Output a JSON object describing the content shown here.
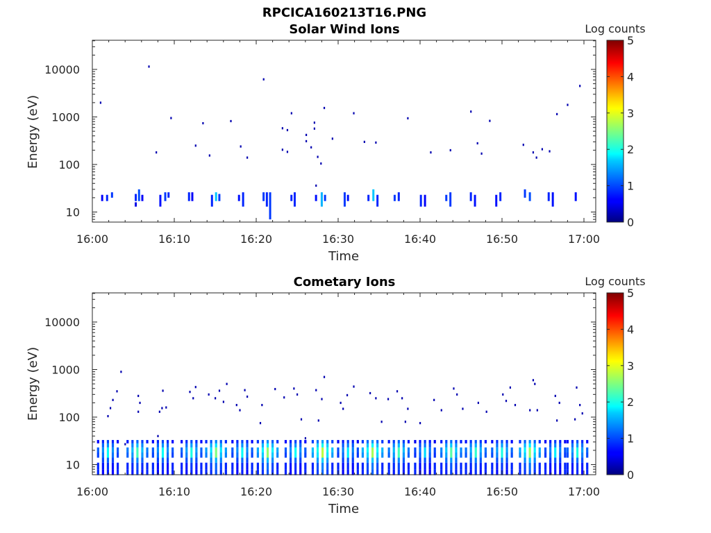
{
  "figure_title": "RPCICA160213T16.PNG",
  "chart_data": [
    {
      "type": "heatmap",
      "title": "Solar Wind Ions",
      "xlabel": "Time",
      "ylabel": "Energy (eV)",
      "x_ticks": [
        "16:00",
        "16:10",
        "16:20",
        "16:30",
        "16:40",
        "16:50",
        "17:00"
      ],
      "y_ticks": [
        "10",
        "100",
        "1000",
        "10000"
      ],
      "xlim": [
        "16:00",
        "17:00"
      ],
      "ylim": [
        6,
        40000
      ],
      "y_scale": "log",
      "colorbar": {
        "label": "Log counts",
        "ticks": [
          "0",
          "1",
          "2",
          "3",
          "4",
          "5"
        ],
        "range": [
          0,
          5
        ],
        "colormap": "jet"
      },
      "columns": [
        {
          "t": 1.2,
          "e": [
            [
              17,
              23,
              0.6
            ]
          ]
        },
        {
          "t": 1.8,
          "e": [
            [
              17,
              23,
              0.8
            ]
          ]
        },
        {
          "t": 2.4,
          "e": [
            [
              20,
              26,
              0.9
            ]
          ]
        },
        {
          "t": 5.3,
          "e": [
            [
              17,
              24,
              0.8
            ],
            [
              13,
              16,
              0.5
            ]
          ]
        },
        {
          "t": 5.7,
          "e": [
            [
              17,
              30,
              1.0
            ]
          ]
        },
        {
          "t": 6.1,
          "e": [
            [
              17,
              23,
              0.6
            ]
          ]
        },
        {
          "t": 8.3,
          "e": [
            [
              13,
              23,
              0.7
            ]
          ]
        },
        {
          "t": 8.9,
          "e": [
            [
              17,
              26,
              0.9
            ]
          ]
        },
        {
          "t": 9.3,
          "e": [
            [
              20,
              26,
              0.8
            ]
          ]
        },
        {
          "t": 11.8,
          "e": [
            [
              17,
              26,
              0.8
            ]
          ]
        },
        {
          "t": 12.2,
          "e": [
            [
              17,
              26,
              0.6
            ]
          ]
        },
        {
          "t": 14.6,
          "e": [
            [
              13,
              23,
              0.8
            ]
          ]
        },
        {
          "t": 15.1,
          "e": [
            [
              17,
              26,
              1.6
            ]
          ]
        },
        {
          "t": 15.5,
          "e": [
            [
              17,
              24,
              0.9
            ]
          ]
        },
        {
          "t": 17.9,
          "e": [
            [
              17,
              23,
              0.7
            ]
          ]
        },
        {
          "t": 18.4,
          "e": [
            [
              13,
              26,
              0.8
            ]
          ]
        },
        {
          "t": 20.9,
          "e": [
            [
              17,
              26,
              0.9
            ]
          ]
        },
        {
          "t": 21.3,
          "e": [
            [
              13,
              26,
              0.8
            ]
          ]
        },
        {
          "t": 21.7,
          "e": [
            [
              7,
              26,
              0.9
            ]
          ]
        },
        {
          "t": 24.3,
          "e": [
            [
              17,
              23,
              0.8
            ]
          ]
        },
        {
          "t": 24.7,
          "e": [
            [
              13,
              26,
              0.8
            ]
          ]
        },
        {
          "t": 27.3,
          "e": [
            [
              17,
              23,
              0.7
            ]
          ]
        },
        {
          "t": 28.0,
          "e": [
            [
              13,
              26,
              1.5
            ]
          ]
        },
        {
          "t": 28.4,
          "e": [
            [
              17,
              23,
              0.9
            ]
          ]
        },
        {
          "t": 30.8,
          "e": [
            [
              13,
              26,
              0.9
            ]
          ]
        },
        {
          "t": 31.2,
          "e": [
            [
              17,
              23,
              0.7
            ]
          ]
        },
        {
          "t": 33.7,
          "e": [
            [
              17,
              23,
              0.8
            ]
          ]
        },
        {
          "t": 34.3,
          "e": [
            [
              17,
              30,
              1.6
            ]
          ]
        },
        {
          "t": 34.8,
          "e": [
            [
              13,
              23,
              0.8
            ]
          ]
        },
        {
          "t": 36.9,
          "e": [
            [
              17,
              23,
              0.9
            ]
          ]
        },
        {
          "t": 37.4,
          "e": [
            [
              17,
              26,
              0.8
            ]
          ]
        },
        {
          "t": 40.1,
          "e": [
            [
              13,
              23,
              0.8
            ]
          ]
        },
        {
          "t": 40.6,
          "e": [
            [
              13,
              23,
              0.6
            ]
          ]
        },
        {
          "t": 43.2,
          "e": [
            [
              17,
              23,
              0.9
            ]
          ]
        },
        {
          "t": 43.7,
          "e": [
            [
              13,
              26,
              0.9
            ]
          ]
        },
        {
          "t": 46.2,
          "e": [
            [
              17,
              26,
              0.8
            ]
          ]
        },
        {
          "t": 46.7,
          "e": [
            [
              13,
              23,
              0.7
            ]
          ]
        },
        {
          "t": 49.3,
          "e": [
            [
              13,
              23,
              0.7
            ]
          ]
        },
        {
          "t": 49.8,
          "e": [
            [
              17,
              26,
              0.8
            ]
          ]
        },
        {
          "t": 52.8,
          "e": [
            [
              20,
              30,
              0.9
            ]
          ]
        },
        {
          "t": 53.4,
          "e": [
            [
              17,
              26,
              1.0
            ]
          ]
        },
        {
          "t": 55.7,
          "e": [
            [
              17,
              26,
              0.8
            ]
          ]
        },
        {
          "t": 56.2,
          "e": [
            [
              13,
              26,
              0.7
            ]
          ]
        },
        {
          "t": 59.0,
          "e": [
            [
              17,
              26,
              0.7
            ]
          ]
        }
      ],
      "pixels": [
        [
          1.0,
          2000
        ],
        [
          6.9,
          11500
        ],
        [
          7.8,
          180
        ],
        [
          9.6,
          950
        ],
        [
          12.6,
          250
        ],
        [
          13.5,
          740
        ],
        [
          14.3,
          155
        ],
        [
          16.9,
          820
        ],
        [
          18.1,
          240
        ],
        [
          18.9,
          140
        ],
        [
          20.9,
          6200
        ],
        [
          23.2,
          580
        ],
        [
          23.2,
          205
        ],
        [
          23.8,
          530
        ],
        [
          23.8,
          185
        ],
        [
          24.3,
          1200
        ],
        [
          26.1,
          420
        ],
        [
          26.1,
          310
        ],
        [
          26.7,
          230
        ],
        [
          27.1,
          760
        ],
        [
          27.1,
          570
        ],
        [
          27.5,
          145
        ],
        [
          27.9,
          105
        ],
        [
          28.3,
          1550
        ],
        [
          29.3,
          350
        ],
        [
          31.9,
          1200
        ],
        [
          33.2,
          300
        ],
        [
          34.6,
          290
        ],
        [
          38.5,
          940
        ],
        [
          41.3,
          180
        ],
        [
          43.7,
          200
        ],
        [
          46.2,
          1300
        ],
        [
          47.0,
          280
        ],
        [
          47.5,
          170
        ],
        [
          48.5,
          830
        ],
        [
          52.6,
          260
        ],
        [
          53.8,
          180
        ],
        [
          54.2,
          140
        ],
        [
          54.9,
          210
        ],
        [
          55.8,
          190
        ],
        [
          56.7,
          1150
        ],
        [
          58.0,
          1800
        ],
        [
          59.5,
          4500
        ],
        [
          28.3,
          6
        ],
        [
          27.3,
          36
        ]
      ]
    },
    {
      "type": "heatmap",
      "title": "Cometary Ions",
      "xlabel": "Time",
      "ylabel": "Energy (eV)",
      "x_ticks": [
        "16:00",
        "16:10",
        "16:20",
        "16:30",
        "16:40",
        "16:50",
        "17:00"
      ],
      "y_ticks": [
        "10",
        "100",
        "1000",
        "10000"
      ],
      "xlim": [
        "16:00",
        "17:00"
      ],
      "ylim": [
        6,
        40000
      ],
      "y_scale": "log",
      "colorbar": {
        "label": "Log counts",
        "ticks": [
          "0",
          "1",
          "2",
          "3",
          "4",
          "5"
        ],
        "range": [
          0,
          5
        ],
        "colormap": "jet"
      },
      "column_groups": [
        {
          "t": 1.9,
          "peak": 1.9
        },
        {
          "t": 5.5,
          "peak": 2.2
        },
        {
          "t": 8.6,
          "peak": 1.9
        },
        {
          "t": 12.1,
          "peak": 2.0
        },
        {
          "t": 15.1,
          "peak": 2.5
        },
        {
          "t": 18.3,
          "peak": 1.9
        },
        {
          "t": 21.4,
          "peak": 2.6
        },
        {
          "t": 24.8,
          "peak": 1.9
        },
        {
          "t": 28.1,
          "peak": 2.8
        },
        {
          "t": 31.2,
          "peak": 1.8
        },
        {
          "t": 34.2,
          "peak": 2.7
        },
        {
          "t": 37.4,
          "peak": 2.2
        },
        {
          "t": 40.6,
          "peak": 1.7
        },
        {
          "t": 43.8,
          "peak": 2.3
        },
        {
          "t": 46.8,
          "peak": 2.1
        },
        {
          "t": 50.0,
          "peak": 2.0
        },
        {
          "t": 53.4,
          "peak": 2.6
        },
        {
          "t": 56.5,
          "peak": 1.8
        },
        {
          "t": 59.2,
          "peak": 2.0
        }
      ],
      "pixels": [
        [
          3.5,
          900
        ],
        [
          3.0,
          350
        ],
        [
          2.5,
          230
        ],
        [
          2.2,
          155
        ],
        [
          1.9,
          105
        ],
        [
          5.6,
          280
        ],
        [
          5.8,
          200
        ],
        [
          5.6,
          130
        ],
        [
          8.6,
          360
        ],
        [
          8.5,
          155
        ],
        [
          8.2,
          130
        ],
        [
          9.0,
          160
        ],
        [
          11.9,
          340
        ],
        [
          12.3,
          250
        ],
        [
          12.6,
          430
        ],
        [
          14.2,
          300
        ],
        [
          15.0,
          250
        ],
        [
          15.5,
          360
        ],
        [
          16.0,
          210
        ],
        [
          16.4,
          500
        ],
        [
          17.6,
          180
        ],
        [
          18.0,
          140
        ],
        [
          18.6,
          370
        ],
        [
          18.9,
          270
        ],
        [
          20.7,
          180
        ],
        [
          20.5,
          75
        ],
        [
          22.3,
          390
        ],
        [
          23.4,
          260
        ],
        [
          24.6,
          400
        ],
        [
          25.0,
          300
        ],
        [
          25.5,
          90
        ],
        [
          27.3,
          370
        ],
        [
          28.3,
          700
        ],
        [
          28.0,
          240
        ],
        [
          27.6,
          85
        ],
        [
          30.3,
          200
        ],
        [
          30.6,
          150
        ],
        [
          31.1,
          290
        ],
        [
          31.9,
          440
        ],
        [
          33.9,
          320
        ],
        [
          34.6,
          250
        ],
        [
          35.3,
          80
        ],
        [
          36.1,
          240
        ],
        [
          37.2,
          350
        ],
        [
          37.8,
          250
        ],
        [
          38.5,
          150
        ],
        [
          38.2,
          80
        ],
        [
          40.0,
          75
        ],
        [
          41.7,
          230
        ],
        [
          42.6,
          140
        ],
        [
          44.1,
          400
        ],
        [
          44.5,
          300
        ],
        [
          45.2,
          150
        ],
        [
          47.1,
          200
        ],
        [
          48.1,
          130
        ],
        [
          50.1,
          300
        ],
        [
          50.5,
          220
        ],
        [
          51.0,
          420
        ],
        [
          51.6,
          180
        ],
        [
          53.4,
          140
        ],
        [
          53.8,
          600
        ],
        [
          54.0,
          500
        ],
        [
          54.3,
          140
        ],
        [
          56.5,
          280
        ],
        [
          57.0,
          200
        ],
        [
          56.7,
          85
        ],
        [
          59.1,
          420
        ],
        [
          59.5,
          180
        ],
        [
          59.8,
          120
        ],
        [
          58.9,
          90
        ],
        [
          28.3,
          6
        ],
        [
          4.0,
          27
        ],
        [
          8.0,
          40
        ],
        [
          26.0,
          36
        ]
      ]
    }
  ],
  "colors": {
    "axis": "#262626",
    "background": "#ffffff"
  }
}
